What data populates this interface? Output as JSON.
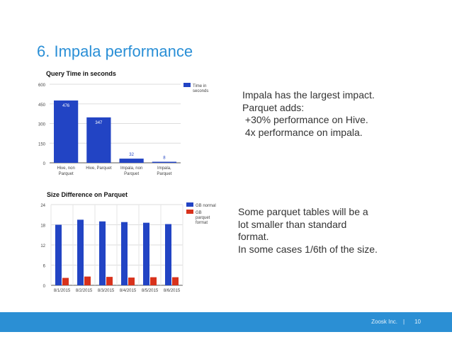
{
  "slide": {
    "title": "6. Impala performance",
    "text_block_1": [
      "Impala has the largest impact.",
      "",
      "Parquet adds:",
      " +30% performance on Hive.",
      " 4x performance on impala."
    ],
    "text_block_2": [
      "Some parquet tables will be a",
      "lot smaller than standard",
      "format.",
      "",
      "In some cases 1/6th of the size."
    ]
  },
  "footer": {
    "company": "Zoosk Inc.",
    "separator": "|",
    "page_number": "10"
  },
  "colors": {
    "title": "#2a8fd6",
    "footer_bar": "#2b8fd4",
    "series_blue": "#2244c4",
    "series_red": "#d8321c"
  },
  "chart_data": [
    {
      "type": "bar",
      "title": "Query Time in seconds",
      "categories": [
        [
          "Hive, non",
          "Parquet"
        ],
        [
          "Hive, Parquet"
        ],
        [
          "Impala, non",
          "Parquet"
        ],
        [
          "Impala,",
          "Parquet"
        ]
      ],
      "series": [
        {
          "name": "Time in seconds",
          "values": [
            476,
            347,
            32,
            8
          ],
          "color": "#2244c4"
        }
      ],
      "data_labels": [
        "476",
        "347",
        "32",
        "8"
      ],
      "yticks": [
        "0",
        "150",
        "300",
        "450",
        "600"
      ],
      "ylim": [
        0,
        600
      ],
      "legend": [
        "Time in",
        "seconds"
      ],
      "legend_position": "right",
      "grid": true
    },
    {
      "type": "bar",
      "title": "Size Difference on Parquet",
      "categories": [
        "8/1/2015",
        "8/2/2015",
        "8/3/2015",
        "8/4/2015",
        "8/5/2015",
        "8/6/2015"
      ],
      "series": [
        {
          "name": "GB normal",
          "values": [
            18,
            19.5,
            19,
            18.8,
            18.6,
            18.2
          ],
          "color": "#2244c4"
        },
        {
          "name": "GB parquet format",
          "values": [
            2.2,
            2.6,
            2.5,
            2.3,
            2.4,
            2.4
          ],
          "color": "#d8321c"
        }
      ],
      "legend": [
        [
          "GB normal"
        ],
        [
          "GB",
          "parquet",
          "format"
        ]
      ],
      "legend_position": "right",
      "yticks": [
        "0",
        "6",
        "12",
        "18",
        "24"
      ],
      "ylim": [
        0,
        24
      ],
      "grid": true
    }
  ]
}
